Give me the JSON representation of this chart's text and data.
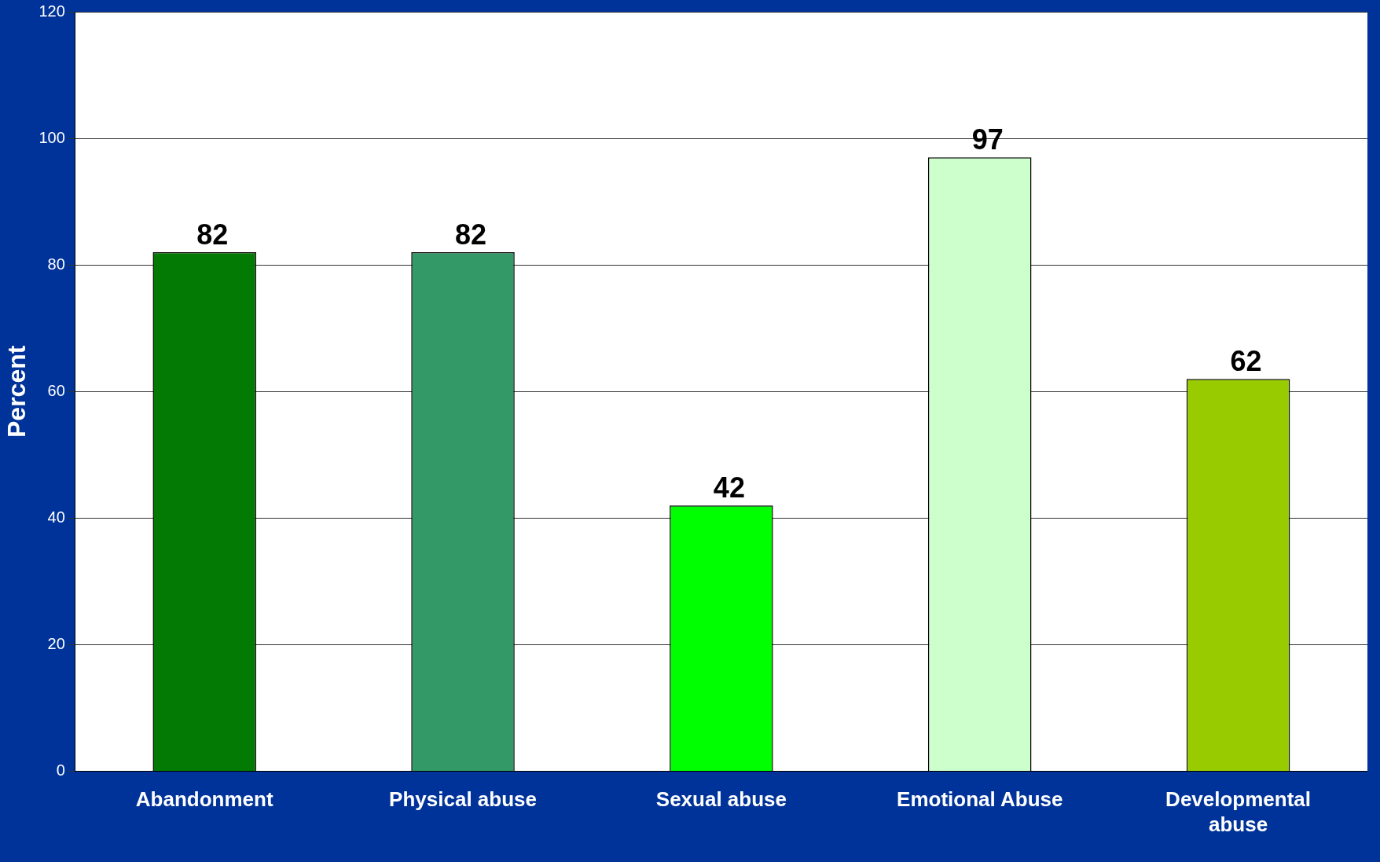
{
  "chart_data": {
    "type": "bar",
    "ylabel": "Percent",
    "categories": [
      "Abandonment",
      "Physical abuse",
      "Sexual abuse",
      "Emotional Abuse",
      "Developmental abuse"
    ],
    "values": [
      82,
      82,
      42,
      97,
      62
    ],
    "colors": [
      "#037a03",
      "#339966",
      "#00ff00",
      "#ccffcc",
      "#99cc00"
    ],
    "ylim": [
      0,
      120
    ],
    "yticks": [
      0,
      20,
      40,
      60,
      80,
      100,
      120
    ],
    "grid": "y",
    "data_labels": true,
    "legend": false
  }
}
